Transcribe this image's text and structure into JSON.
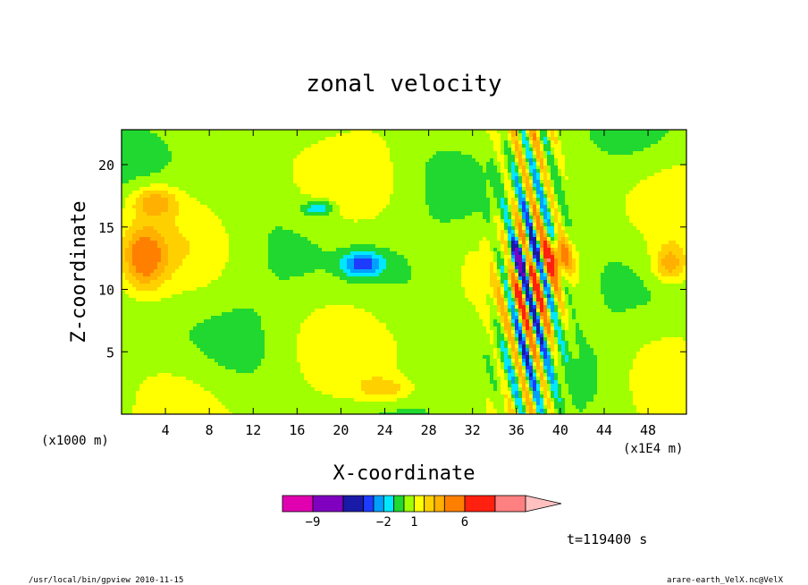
{
  "chart_data": {
    "type": "heatmap",
    "title": "zonal velocity",
    "xlabel": "X-coordinate",
    "ylabel": "Z-coordinate",
    "x_units": "(x1E4 m)",
    "y_units": "(x1000 m)",
    "xlim": [
      0,
      51.5
    ],
    "ylim": [
      0,
      22.8
    ],
    "xticks": [
      4,
      8,
      12,
      16,
      20,
      24,
      28,
      32,
      36,
      40,
      44,
      48
    ],
    "yticks": [
      5,
      10,
      15,
      20
    ],
    "timestamp": "t=119400 s",
    "colorbar": {
      "labels": [
        {
          "value": -9,
          "text": "−9"
        },
        {
          "value": -2,
          "text": "−2"
        },
        {
          "value": 1,
          "text": "1"
        },
        {
          "value": 6,
          "text": "6"
        }
      ],
      "bins": [
        {
          "lo": -12,
          "hi": -9,
          "color": "#e000b0"
        },
        {
          "lo": -9,
          "hi": -6,
          "color": "#8000c0"
        },
        {
          "lo": -6,
          "hi": -4,
          "color": "#1a1aa8"
        },
        {
          "lo": -4,
          "hi": -3,
          "color": "#1e3cff"
        },
        {
          "lo": -3,
          "hi": -2,
          "color": "#00a0ff"
        },
        {
          "lo": -2,
          "hi": -1,
          "color": "#00e8ff"
        },
        {
          "lo": -1,
          "hi": 0,
          "color": "#20d830"
        },
        {
          "lo": 0,
          "hi": 1,
          "color": "#a0ff00"
        },
        {
          "lo": 1,
          "hi": 2,
          "color": "#ffff00"
        },
        {
          "lo": 2,
          "hi": 3,
          "color": "#ffd000"
        },
        {
          "lo": 3,
          "hi": 4,
          "color": "#ffb000"
        },
        {
          "lo": 4,
          "hi": 6,
          "color": "#ff8000"
        },
        {
          "lo": 6,
          "hi": 9,
          "color": "#ff2010"
        },
        {
          "lo": 9,
          "hi": 12,
          "color": "#ff8080"
        }
      ],
      "extend_max_color": "#ffc0c0"
    },
    "field_features": [
      {
        "kind": "blob",
        "x": 36.5,
        "z": 12.5,
        "sx": 1.6,
        "sz": 1.4,
        "value": -5
      },
      {
        "kind": "blob",
        "x": 39.5,
        "z": 12.5,
        "sx": 1.6,
        "sz": 1.5,
        "value": 5
      },
      {
        "kind": "blob",
        "x": 22,
        "z": 12,
        "sx": 1.8,
        "sz": 1.0,
        "value": -4
      },
      {
        "kind": "blob",
        "x": 18,
        "z": 16.5,
        "sx": 1.3,
        "sz": 0.6,
        "value": -3
      },
      {
        "kind": "blob",
        "x": 2,
        "z": 12.5,
        "sx": 2.0,
        "sz": 2.5,
        "value": 4
      },
      {
        "kind": "blob",
        "x": 3,
        "z": 17,
        "sx": 2.0,
        "sz": 1.2,
        "value": 3
      },
      {
        "kind": "blob",
        "x": 50,
        "z": 12,
        "sx": 1.5,
        "sz": 1.5,
        "value": 3
      },
      {
        "kind": "blob",
        "x": 24,
        "z": 2,
        "sx": 2.5,
        "sz": 1.0,
        "value": 2
      }
    ]
  },
  "footer": {
    "left": "/usr/local/bin/gpview  2010-11-15",
    "right": "arare-earth_VelX.nc@VelX"
  }
}
